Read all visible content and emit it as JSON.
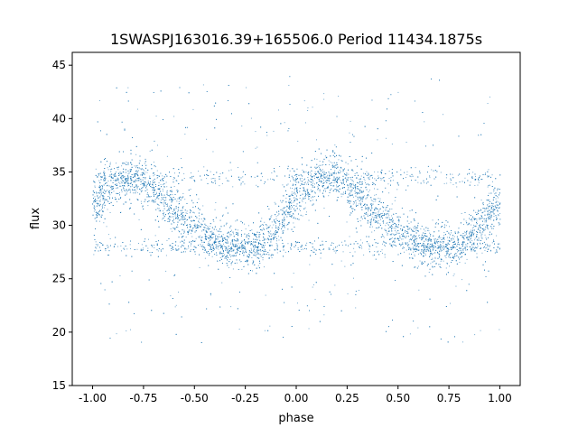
{
  "chart_data": {
    "type": "scatter",
    "title": "1SWASPJ163016.39+165506.0 Period 11434.1875s",
    "xlabel": "phase",
    "ylabel": "flux",
    "xlim": [
      -1.1,
      1.1
    ],
    "ylim": [
      15,
      46.2
    ],
    "xticks": [
      "-1.00",
      "-0.75",
      "-0.50",
      "-0.25",
      "0.00",
      "0.25",
      "0.50",
      "0.75",
      "1.00"
    ],
    "xtick_values": [
      -1.0,
      -0.75,
      -0.5,
      -0.25,
      0.0,
      0.25,
      0.5,
      0.75,
      1.0
    ],
    "yticks": [
      "15",
      "20",
      "25",
      "30",
      "35",
      "40",
      "45"
    ],
    "ytick_values": [
      15,
      20,
      25,
      30,
      35,
      40,
      45
    ],
    "grid": false,
    "marker_color": "#1f77b4",
    "x": [
      -1.0,
      -0.9,
      -0.8,
      -0.7,
      -0.6,
      -0.5,
      -0.4,
      -0.3,
      -0.2,
      -0.1,
      0.0,
      0.1,
      0.2,
      0.3,
      0.4,
      0.5,
      0.6,
      0.7,
      0.8,
      0.9,
      1.0
    ],
    "y": [
      32,
      34,
      34.5,
      33.5,
      31.5,
      30,
      28.5,
      28,
      28,
      29.5,
      32.5,
      34.5,
      34.5,
      33,
      31,
      29.5,
      28.3,
      28,
      28.2,
      30,
      32
    ]
  }
}
